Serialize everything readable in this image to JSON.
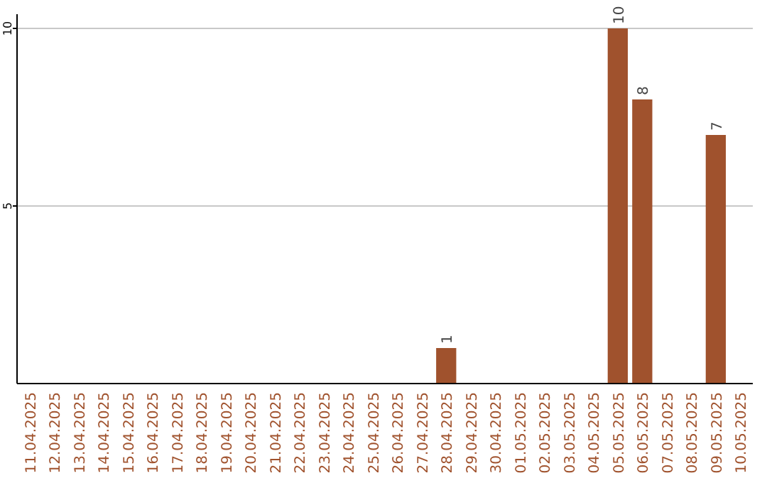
{
  "chart_data": {
    "type": "bar",
    "categories": [
      "11.04.2025",
      "12.04.2025",
      "13.04.2025",
      "14.04.2025",
      "15.04.2025",
      "16.04.2025",
      "17.04.2025",
      "18.04.2025",
      "19.04.2025",
      "20.04.2025",
      "21.04.2025",
      "22.04.2025",
      "23.04.2025",
      "24.04.2025",
      "25.04.2025",
      "26.04.2025",
      "27.04.2025",
      "28.04.2025",
      "29.04.2025",
      "30.04.2025",
      "01.05.2025",
      "02.05.2025",
      "03.05.2025",
      "04.05.2025",
      "05.05.2025",
      "06.05.2025",
      "07.05.2025",
      "08.05.2025",
      "09.05.2025",
      "10.05.2025"
    ],
    "values": [
      0,
      0,
      0,
      0,
      0,
      0,
      0,
      0,
      0,
      0,
      0,
      0,
      0,
      0,
      0,
      0,
      0,
      1,
      0,
      0,
      0,
      0,
      0,
      0,
      10,
      8,
      0,
      0,
      7,
      0
    ],
    "value_labels": [
      null,
      null,
      null,
      null,
      null,
      null,
      null,
      null,
      null,
      null,
      null,
      null,
      null,
      null,
      null,
      null,
      null,
      "1",
      null,
      null,
      null,
      null,
      null,
      null,
      "10",
      "8",
      null,
      null,
      "7",
      null
    ],
    "color": "#a0522d",
    "ylim": [
      0,
      10.4
    ],
    "yticks": [
      5,
      10
    ],
    "grid": "y"
  }
}
